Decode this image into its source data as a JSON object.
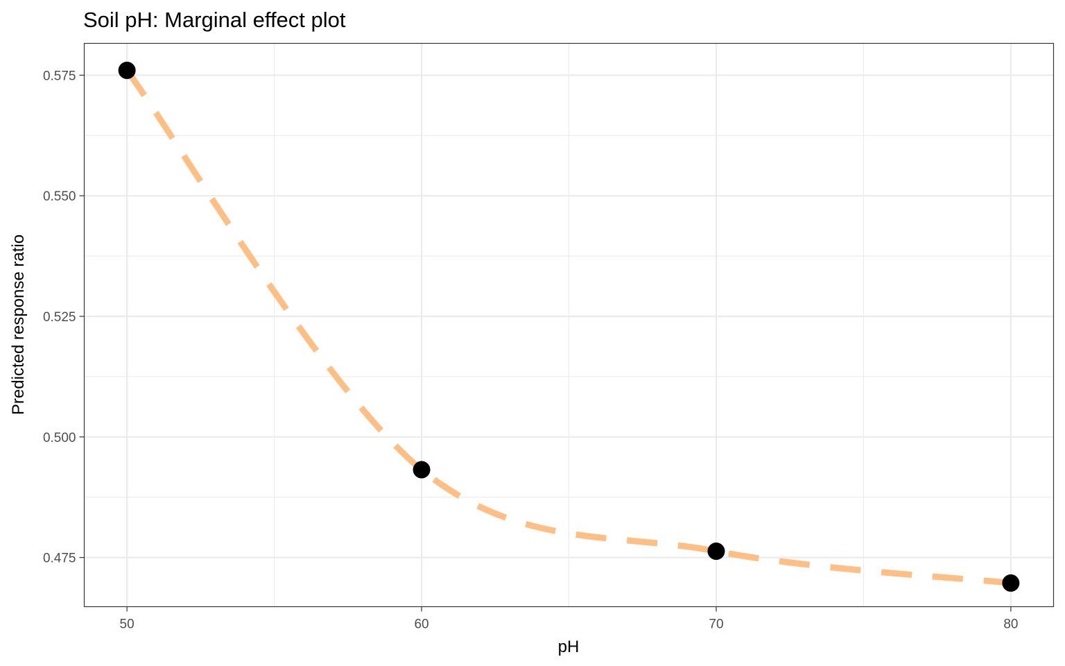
{
  "chart_data": {
    "type": "line",
    "title": "Soil pH: Marginal effect plot",
    "xlabel": "pH",
    "ylabel": "Predicted response ratio",
    "x": [
      50,
      60,
      70,
      80
    ],
    "series": [
      {
        "values": [
          0.576,
          0.4932,
          0.4763,
          0.4697
        ]
      }
    ],
    "xlim": [
      48.55,
      81.45
    ],
    "ylim": [
      0.4648,
      0.5816
    ],
    "x_ticks": [
      50,
      60,
      70,
      80
    ],
    "x_tick_labels": [
      "50",
      "60",
      "70",
      "80"
    ],
    "x_minor_ticks": [
      55,
      65,
      75
    ],
    "y_ticks": [
      0.475,
      0.5,
      0.525,
      0.55,
      0.575
    ],
    "y_tick_labels": [
      "0.475",
      "0.500",
      "0.525",
      "0.550",
      "0.575"
    ],
    "y_minor_ticks": [
      0.4875,
      0.5125,
      0.5375,
      0.5625
    ],
    "grid": true,
    "legend": "none",
    "line_style": "dashed",
    "colors": {
      "line": "#FDBF85",
      "points": "#000000",
      "grid": "#EBEBEB",
      "panel_border": "#333333"
    }
  }
}
